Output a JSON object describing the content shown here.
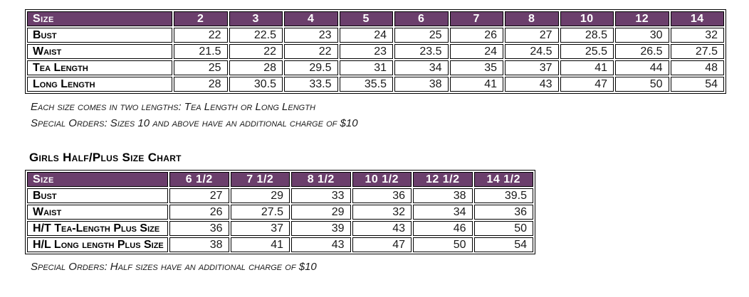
{
  "accent_color": "#6B3F6C",
  "table1": {
    "header": [
      "Size",
      "2",
      "3",
      "4",
      "5",
      "6",
      "7",
      "8",
      "10",
      "12",
      "14"
    ],
    "rows": [
      {
        "label": "Bust",
        "values": [
          "22",
          "22.5",
          "23",
          "24",
          "25",
          "26",
          "27",
          "28.5",
          "30",
          "32"
        ]
      },
      {
        "label": "Waist",
        "values": [
          "21.5",
          "22",
          "22",
          "23",
          "23.5",
          "24",
          "24.5",
          "25.5",
          "26.5",
          "27.5"
        ]
      },
      {
        "label": "Tea Length",
        "values": [
          "25",
          "28",
          "29.5",
          "31",
          "34",
          "35",
          "37",
          "41",
          "44",
          "48"
        ]
      },
      {
        "label": "Long Length",
        "values": [
          "28",
          "30.5",
          "33.5",
          "35.5",
          "38",
          "41",
          "43",
          "47",
          "50",
          "54"
        ]
      }
    ]
  },
  "notes_table1": [
    "Each size comes in two lengths: Tea Length or Long Length",
    "Special Orders: Sizes 10 and above have an additional charge of $10"
  ],
  "table2": {
    "title": "Girls Half/Plus Size Chart",
    "header": [
      "Size",
      "6 1/2",
      "7 1/2",
      "8 1/2",
      "10 1/2",
      "12 1/2",
      "14 1/2"
    ],
    "rows": [
      {
        "label": "Bust",
        "values": [
          "27",
          "29",
          "33",
          "36",
          "38",
          "39.5"
        ]
      },
      {
        "label": "Waist",
        "values": [
          "26",
          "27.5",
          "29",
          "32",
          "34",
          "36"
        ]
      },
      {
        "label": "H/T Tea-Length Plus Size",
        "values": [
          "36",
          "37",
          "39",
          "43",
          "46",
          "50"
        ]
      },
      {
        "label": "H/L Long length Plus Size",
        "values": [
          "38",
          "41",
          "43",
          "47",
          "50",
          "54"
        ]
      }
    ]
  },
  "note_table2": "Special Orders: Half sizes have an additional charge of $10"
}
